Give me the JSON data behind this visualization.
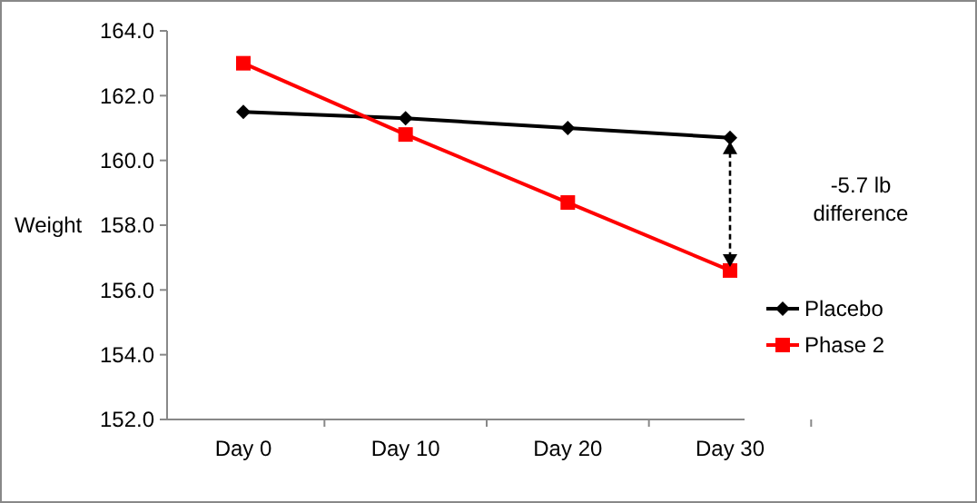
{
  "chart_data": {
    "type": "line",
    "ylabel": "Weight",
    "categories": [
      "Day 0",
      "Day 10",
      "Day 20",
      "Day 30"
    ],
    "series": [
      {
        "name": "Placebo",
        "color": "#000000",
        "marker": "diamond",
        "values": [
          161.5,
          161.3,
          161.0,
          160.7
        ]
      },
      {
        "name": "Phase 2",
        "color": "#ff0000",
        "marker": "square",
        "values": [
          163.0,
          160.8,
          158.7,
          156.6
        ]
      }
    ],
    "ylim": [
      152,
      164
    ],
    "yticks": [
      {
        "value": 152,
        "label": "152.0"
      },
      {
        "value": 154,
        "label": "154.0"
      },
      {
        "value": 156,
        "label": "156.0"
      },
      {
        "value": 158,
        "label": "158.0"
      },
      {
        "value": 160,
        "label": "160.0"
      },
      {
        "value": 162,
        "label": "162.0"
      },
      {
        "value": 164,
        "label": "164.0"
      }
    ],
    "annotations": [
      "-5.7 lb difference"
    ],
    "legend": "right",
    "grid": false,
    "line_style": "solid"
  }
}
